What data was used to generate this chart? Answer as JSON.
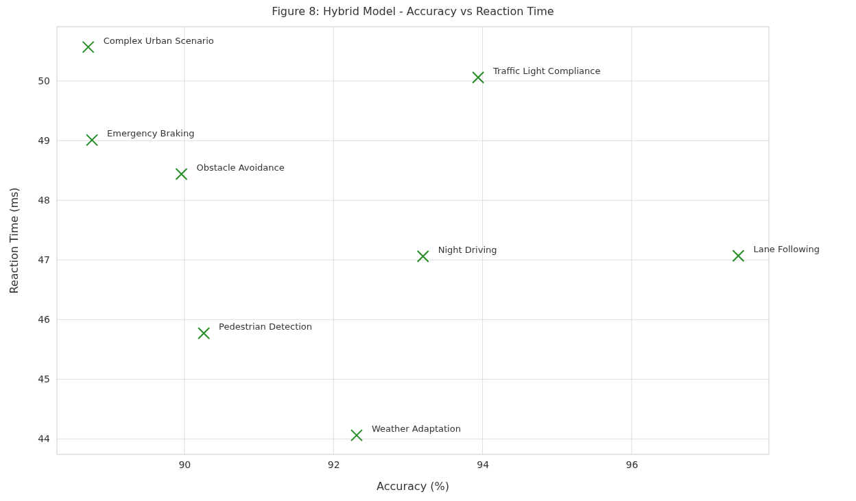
{
  "chart_data": {
    "type": "scatter",
    "title": "Figure 8: Hybrid Model - Accuracy vs Reaction Time",
    "xlabel": "Accuracy (%)",
    "ylabel": "Reaction Time (ms)",
    "x": [
      97.43,
      90.26,
      89.96,
      93.2,
      92.31,
      93.94,
      88.76,
      88.71
    ],
    "series": [
      {
        "color": "#228b22",
        "values": [
          47.07,
          45.77,
          48.44,
          47.06,
          44.06,
          50.06,
          49.01,
          50.57
        ]
      }
    ],
    "annotations": [
      {
        "text": "Lane Following",
        "x": 97.43,
        "y": 47.07
      },
      {
        "text": "Pedestrian Detection",
        "x": 90.26,
        "y": 45.77
      },
      {
        "text": "Obstacle Avoidance",
        "x": 89.96,
        "y": 48.44
      },
      {
        "text": "Night Driving",
        "x": 93.2,
        "y": 47.06
      },
      {
        "text": "Weather Adaptation",
        "x": 92.31,
        "y": 44.06
      },
      {
        "text": "Traffic Light Compliance",
        "x": 93.94,
        "y": 50.06
      },
      {
        "text": "Emergency Braking",
        "x": 88.76,
        "y": 49.01
      },
      {
        "text": "Complex Urban Scenario",
        "x": 88.71,
        "y": 50.57
      }
    ],
    "xlim": [
      88.29,
      97.84
    ],
    "xticks": [
      90,
      92,
      94,
      96
    ],
    "ylim": [
      43.74,
      50.91
    ],
    "yticks": [
      44,
      45,
      46,
      47,
      48,
      49,
      50
    ],
    "grid": true,
    "marker": "cross"
  }
}
